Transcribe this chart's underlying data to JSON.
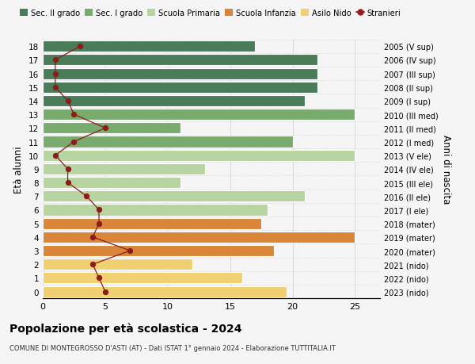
{
  "ages": [
    18,
    17,
    16,
    15,
    14,
    13,
    12,
    11,
    10,
    9,
    8,
    7,
    6,
    5,
    4,
    3,
    2,
    1,
    0
  ],
  "right_labels": [
    "2005 (V sup)",
    "2006 (IV sup)",
    "2007 (III sup)",
    "2008 (II sup)",
    "2009 (I sup)",
    "2010 (III med)",
    "2011 (II med)",
    "2012 (I med)",
    "2013 (V ele)",
    "2014 (IV ele)",
    "2015 (III ele)",
    "2016 (II ele)",
    "2017 (I ele)",
    "2018 (mater)",
    "2019 (mater)",
    "2020 (mater)",
    "2021 (nido)",
    "2022 (nido)",
    "2023 (nido)"
  ],
  "bar_values": [
    17,
    22,
    22,
    22,
    21,
    25,
    11,
    20,
    25,
    13,
    11,
    21,
    18,
    17.5,
    25,
    18.5,
    12,
    16,
    19.5
  ],
  "bar_colors": [
    "#4a7c59",
    "#4a7c59",
    "#4a7c59",
    "#4a7c59",
    "#4a7c59",
    "#7aab6e",
    "#7aab6e",
    "#7aab6e",
    "#b8d4a0",
    "#b8d4a0",
    "#b8d4a0",
    "#b8d4a0",
    "#b8d4a0",
    "#d9863a",
    "#d9863a",
    "#d9863a",
    "#f0d070",
    "#f0d070",
    "#f0d070"
  ],
  "stranieri_values": [
    3,
    1,
    1,
    1,
    2,
    2.5,
    5,
    2.5,
    1,
    2,
    2,
    3.5,
    4.5,
    4.5,
    4,
    7,
    4,
    4.5,
    5
  ],
  "legend_labels": [
    "Sec. II grado",
    "Sec. I grado",
    "Scuola Primaria",
    "Scuola Infanzia",
    "Asilo Nido",
    "Stranieri"
  ],
  "legend_colors": [
    "#4a7c59",
    "#7aab6e",
    "#b8d4a0",
    "#d9863a",
    "#f0d070",
    "#9b1c1c"
  ],
  "title": "Popolazione per età scolastica - 2024",
  "subtitle": "COMUNE DI MONTEGROSSO D'ASTI (AT) - Dati ISTAT 1° gennaio 2024 - Elaborazione TUTTITALIA.IT",
  "ylabel": "Età alunni",
  "right_ylabel": "Anni di nascita",
  "xlim": [
    0,
    27
  ],
  "xticks": [
    0,
    5,
    10,
    15,
    20,
    25
  ],
  "bg_color": "#f5f5f5"
}
